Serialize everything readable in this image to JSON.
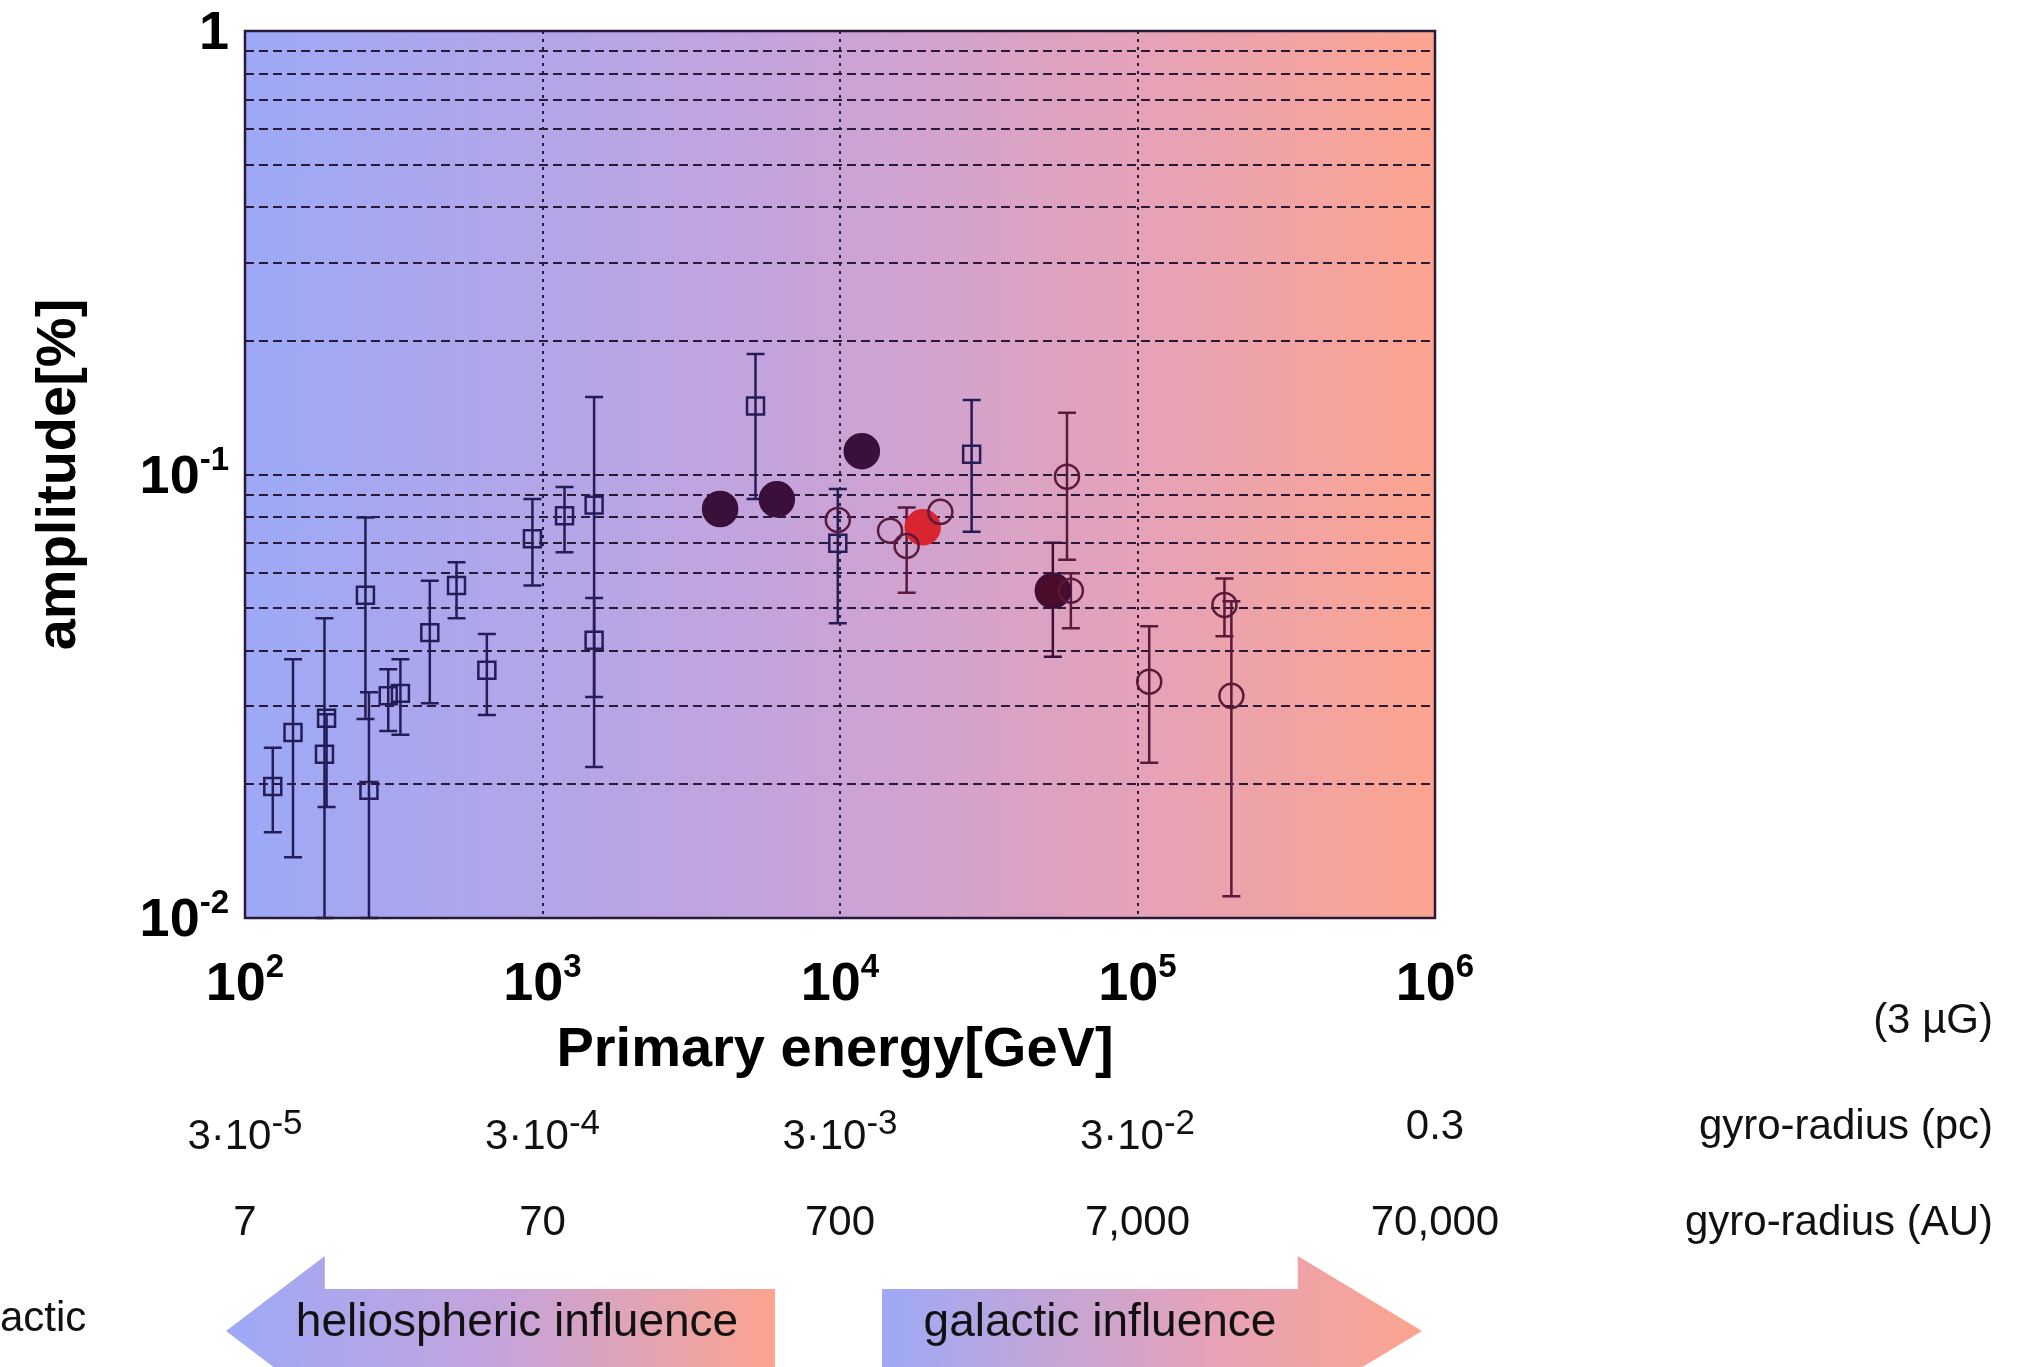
{
  "chart_data": {
    "type": "scatter",
    "xlabel": "Primary energy[GeV]",
    "ylabel": "amplitude[%]",
    "log": "xy",
    "grid": true,
    "legend": false,
    "xlim": [
      100,
      1000000
    ],
    "xticks": [
      {
        "value": 100,
        "label": "10$^{2}$"
      },
      {
        "value": 1000,
        "label": "10$^{3}$"
      },
      {
        "value": 10000,
        "label": "10$^{4}$"
      },
      {
        "value": 100000,
        "label": "10$^{5}$"
      },
      {
        "value": 1000000,
        "label": "10$^{6}$"
      }
    ],
    "ylim": [
      0.01,
      1
    ],
    "yticks": [
      {
        "value": 0.01,
        "label": "10$^{-2}$"
      },
      {
        "value": 0.02,
        "label": null
      },
      {
        "value": 0.03,
        "label": null
      },
      {
        "value": 0.04,
        "label": null
      },
      {
        "value": 0.05,
        "label": null
      },
      {
        "value": 0.06,
        "label": null
      },
      {
        "value": 0.07,
        "label": null
      },
      {
        "value": 0.08,
        "label": null
      },
      {
        "value": 0.09,
        "label": null
      },
      {
        "value": 0.1,
        "label": "10$^{-1}$"
      },
      {
        "value": 0.2,
        "label": null
      },
      {
        "value": 0.3,
        "label": null
      },
      {
        "value": 0.4,
        "label": null
      },
      {
        "value": 0.5,
        "label": null
      },
      {
        "value": 0.6,
        "label": null
      },
      {
        "value": 0.7,
        "label": null
      },
      {
        "value": 0.8,
        "label": null
      },
      {
        "value": 0.9,
        "label": null
      },
      1
    ],
    "annotations": [
      "(3 µG)",
      "3·10$^{-5}$",
      "3·10$^{-4}$",
      "3·10$^{-3}$",
      "3·10$^{-2}$",
      "0.3",
      "gyro-radius (pc)",
      "7",
      "70",
      "700",
      "7,000",
      "70,000",
      "gyro-radius (AU)",
      "actic",
      "heliospheric influence",
      "galactic influence"
    ],
    "series": [
      {
        "marker": "square",
        "color": "#251d58",
        "x": [
          124,
          145,
          185,
          188,
          254,
          261,
          303,
          333,
          418,
          514,
          650,
          925,
          1186,
          1491,
          1491,
          5200,
          9831,
          27700
        ],
        "values": [
          0.0198,
          0.0262,
          0.0234,
          0.0282,
          0.0534,
          0.0194,
          0.0317,
          0.0321,
          0.044,
          0.0562,
          0.0362,
          0.0716,
          0.0807,
          0.0853,
          0.0423,
          0.1427,
          0.07,
          0.1111
        ],
        "errors": [
          [
            0.0156,
            0.0242
          ],
          [
            0.0137,
            0.0383
          ],
          [
            0.01,
            0.0474
          ],
          [
            0.0178,
            0.0288
          ],
          [
            0.0281,
            0.08
          ],
          [
            0.01,
            0.0323
          ],
          [
            0.0264,
            0.0364
          ],
          [
            0.0259,
            0.0383
          ],
          [
            0.0305,
            0.0576
          ],
          [
            0.0474,
            0.0634
          ],
          [
            0.0287,
            0.0437
          ],
          [
            0.0562,
            0.0881
          ],
          [
            0.0668,
            0.0937
          ],
          [
            0.0315,
            0.1495
          ],
          [
            0.0219,
            0.0527
          ],
          [
            0.0881,
            0.187
          ],
          [
            0.0462,
            0.0927
          ],
          [
            0.0743,
            0.1472
          ]
        ]
      },
      {
        "marker": "circle",
        "color": "#5a1a3c",
        "x": [
          9831,
          14730,
          16750,
          21740,
          57940,
          59700,
          109500,
          196000,
          206800
        ],
        "values": [
          0.079,
          0.0747,
          0.069,
          0.0824,
          0.0989,
          0.0547,
          0.0341,
          0.0508,
          0.0317
        ],
        "errors": [
          null,
          null,
          [
            0.0541,
            0.0843
          ],
          null,
          [
            0.0642,
            0.1378
          ],
          [
            0.045,
            0.0599
          ],
          [
            0.0224,
            0.0455
          ],
          [
            0.0432,
            0.0583
          ],
          [
            0.0112,
            0.0518
          ]
        ]
      },
      {
        "marker": "circle",
        "color": "#3a0f3a",
        "colors": [
          "#3a0f3a",
          "#3a0f3a",
          "#3a0f3a",
          "#4a0c2a"
        ],
        "x": [
          3954,
          6133,
          11840,
          51930
        ],
        "values": [
          0.0836,
          0.0879,
          0.1129,
          0.0547
        ],
        "errors": [
          null,
          null,
          null,
          [
            0.0388,
            0.0702
          ]
        ]
      },
      {
        "marker": "circle",
        "color": "#d9252f",
        "colors": [
          "#d9252f"
        ],
        "x": [
          18970
        ],
        "values": [
          0.076
        ]
      }
    ]
  }
}
